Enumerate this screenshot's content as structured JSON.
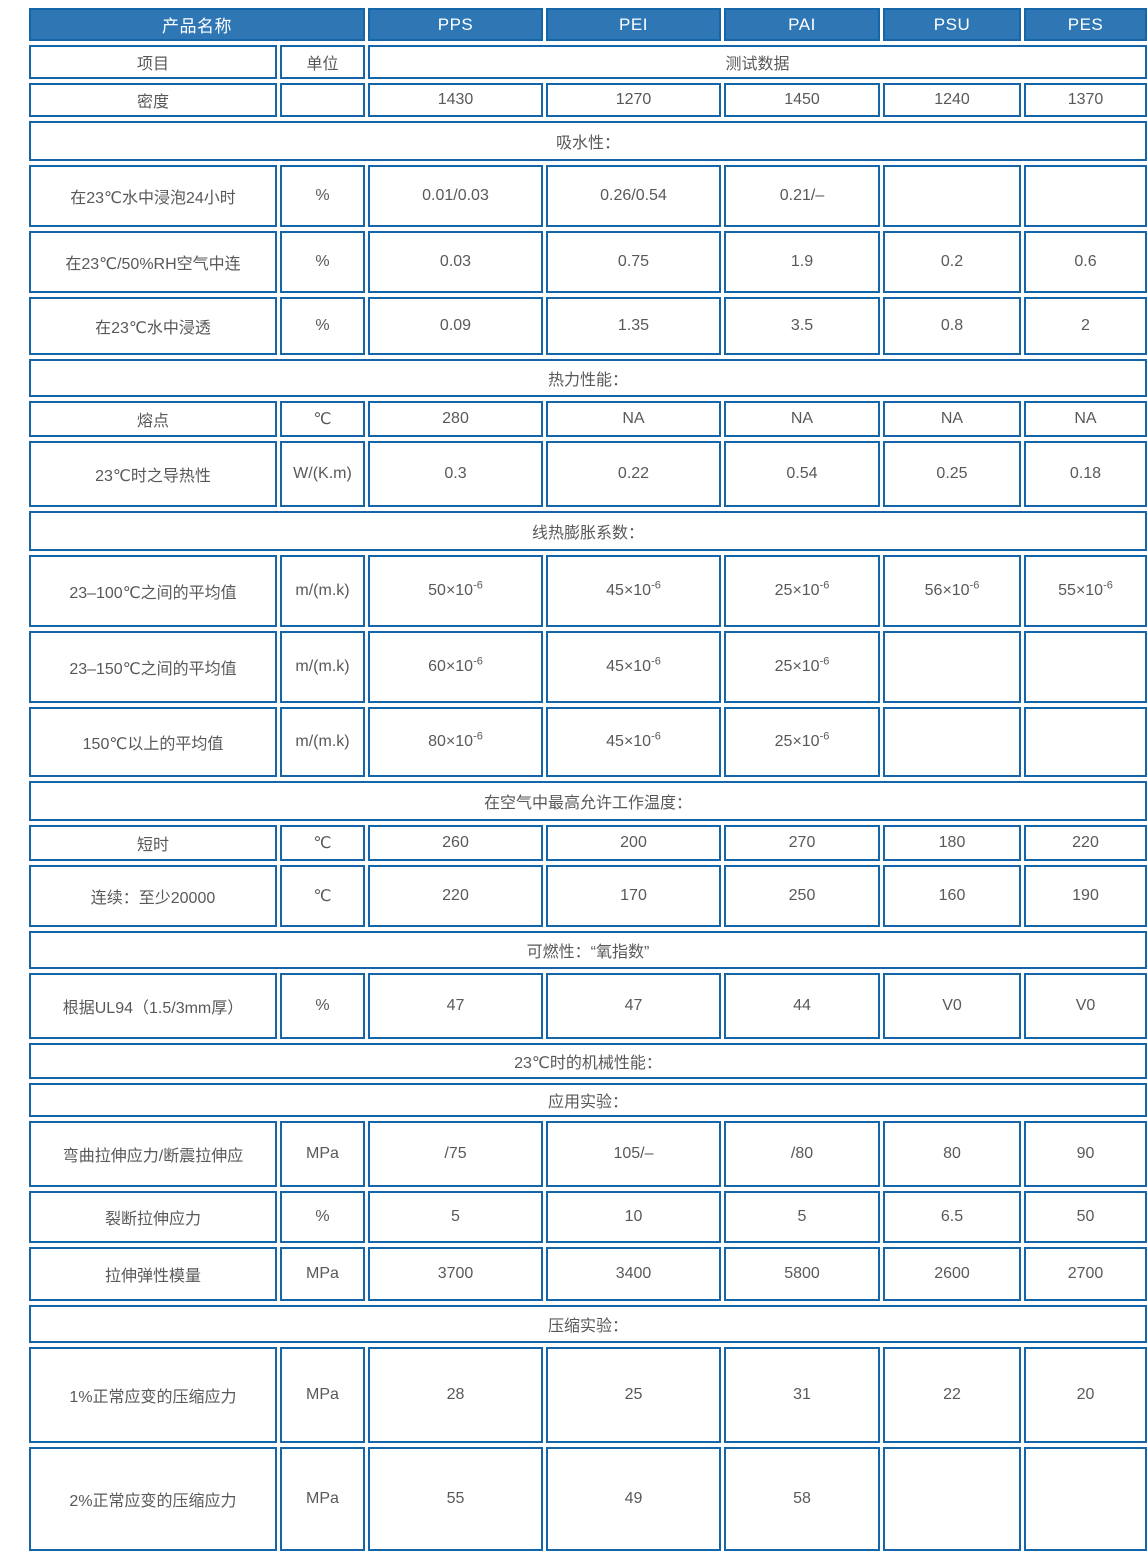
{
  "colors": {
    "header_background": "#2f76b5",
    "header_text": "#ffffff",
    "border": "#1565a9",
    "body_text": "#595959"
  },
  "table": {
    "header": {
      "product_name": "产品名称",
      "products": [
        "PPS",
        "PEI",
        "PAI",
        "PSU",
        "PES"
      ]
    },
    "subheader": {
      "item": "项目",
      "unit": "单位",
      "test_data": "测试数据"
    },
    "rows": [
      {
        "type": "data",
        "label": "密度",
        "unit": "",
        "values": [
          "1430",
          "1270",
          "1450",
          "1240",
          "1370"
        ]
      },
      {
        "type": "section",
        "label": "吸水性："
      },
      {
        "type": "data",
        "label": "在23℃水中浸泡24小时",
        "unit": "%",
        "values": [
          "0.01/0.03",
          "0.26/0.54",
          "0.21/–",
          "",
          ""
        ]
      },
      {
        "type": "data",
        "label": "在23℃/50%RH空气中连",
        "unit": "%",
        "values": [
          "0.03",
          "0.75",
          "1.9",
          "0.2",
          "0.6"
        ]
      },
      {
        "type": "data",
        "label": "在23℃水中浸透",
        "unit": "%",
        "values": [
          "0.09",
          "1.35",
          "3.5",
          "0.8",
          "2"
        ]
      },
      {
        "type": "section",
        "label": "热力性能："
      },
      {
        "type": "data",
        "label": "熔点",
        "unit": "℃",
        "values": [
          "280",
          "NA",
          "NA",
          "NA",
          "NA"
        ]
      },
      {
        "type": "data",
        "label": "23℃时之导热性",
        "unit": "W/(K.m)",
        "values": [
          "0.3",
          "0.22",
          "0.54",
          "0.25",
          "0.18"
        ]
      },
      {
        "type": "section",
        "label": "线热膨胀系数："
      },
      {
        "type": "data",
        "label": "23–100℃之间的平均值",
        "unit": "m/(m.k)",
        "values": [
          "50×10^-6",
          "45×10^-6",
          "25×10^-6",
          "56×10^-6",
          "55×10^-6"
        ]
      },
      {
        "type": "data",
        "label": "23–150℃之间的平均值",
        "unit": "m/(m.k)",
        "values": [
          "60×10^-6",
          "45×10^-6",
          "25×10^-6",
          "",
          ""
        ]
      },
      {
        "type": "data",
        "label": "150℃以上的平均值",
        "unit": "m/(m.k)",
        "values": [
          "80×10^-6",
          "45×10^-6",
          "25×10^-6",
          "",
          ""
        ]
      },
      {
        "type": "section",
        "label": "在空气中最高允许工作温度："
      },
      {
        "type": "data",
        "label": "短时",
        "unit": "℃",
        "values": [
          "260",
          "200",
          "270",
          "180",
          "220"
        ]
      },
      {
        "type": "data",
        "label": "连续：至少20000",
        "unit": "℃",
        "values": [
          "220",
          "170",
          "250",
          "160",
          "190"
        ]
      },
      {
        "type": "section",
        "label": "可燃性：“氧指数”"
      },
      {
        "type": "data",
        "label": "根据UL94（1.5/3mm厚）",
        "unit": "%",
        "values": [
          "47",
          "47",
          "44",
          "V0",
          "V0"
        ]
      },
      {
        "type": "section",
        "label": "23℃时的机械性能："
      },
      {
        "type": "section",
        "label": "应用实验："
      },
      {
        "type": "data",
        "label": "弯曲拉伸应力/断震拉伸应",
        "unit": "MPa",
        "values": [
          "/75",
          "105/–",
          "/80",
          "80",
          "90"
        ]
      },
      {
        "type": "data",
        "label": "裂断拉伸应力",
        "unit": "%",
        "values": [
          "5",
          "10",
          "5",
          "6.5",
          "50"
        ]
      },
      {
        "type": "data",
        "label": "拉伸弹性模量",
        "unit": "MPa",
        "values": [
          "3700",
          "3400",
          "5800",
          "2600",
          "2700"
        ]
      },
      {
        "type": "section",
        "label": "压缩实验："
      },
      {
        "type": "data",
        "label": "1%正常应变的压缩应力",
        "unit": "MPa",
        "values": [
          "28",
          "25",
          "31",
          "22",
          "20"
        ]
      },
      {
        "type": "data",
        "label": "2%正常应变的压缩应力",
        "unit": "MPa",
        "values": [
          "55",
          "49",
          "58",
          "",
          ""
        ]
      }
    ]
  }
}
